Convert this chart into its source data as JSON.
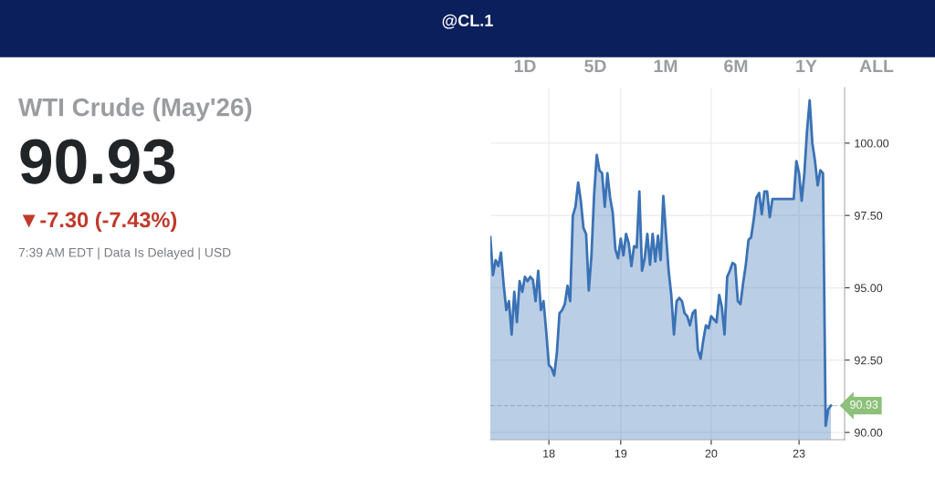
{
  "chart_data": {
    "type": "area",
    "title": "@CL.1",
    "subtitle": "WTI Crude (May'26)",
    "annotations": [
      "90.93",
      "▼-7.30 (-7.43%)",
      "7:39 AM EDT | Data Is Delayed | USD",
      "1D",
      "5D",
      "1M",
      "6M",
      "1Y",
      "ALL"
    ],
    "ylim": [
      89.75,
      101.92
    ],
    "yticks": [
      {
        "value": 90,
        "label": "90.00"
      },
      {
        "value": 92.5,
        "label": "92.50"
      },
      {
        "value": 95,
        "label": "95.00"
      },
      {
        "value": 97.5,
        "label": "97.50"
      },
      {
        "value": 100,
        "label": "100.00"
      }
    ],
    "grid": true,
    "ref_lines": [
      {
        "axis": "y",
        "value": 90.93,
        "label": "90.93",
        "color": "#cccccc",
        "line_style": "dashed"
      }
    ],
    "categories": [
      null,
      null,
      null,
      null,
      null,
      null,
      null,
      null,
      null,
      null,
      null,
      null,
      null,
      null,
      null,
      null,
      null,
      null,
      null,
      null,
      null,
      null,
      "18",
      null,
      null,
      null,
      null,
      null,
      null,
      null,
      null,
      null,
      null,
      null,
      null,
      null,
      null,
      null,
      null,
      null,
      null,
      null,
      null,
      null,
      null,
      null,
      null,
      null,
      null,
      "19",
      null,
      null,
      null,
      null,
      null,
      null,
      null,
      null,
      null,
      null,
      null,
      null,
      null,
      null,
      null,
      null,
      null,
      null,
      null,
      null,
      null,
      null,
      null,
      null,
      null,
      null,
      null,
      null,
      null,
      null,
      null,
      null,
      null,
      "20",
      null,
      null,
      null,
      null,
      null,
      null,
      null,
      null,
      null,
      null,
      null,
      null,
      null,
      null,
      null,
      null,
      null,
      null,
      null,
      null,
      null,
      null,
      null,
      null,
      null,
      null,
      null,
      null,
      null,
      null,
      null,
      null,
      "23",
      null,
      null,
      null,
      null,
      null,
      null,
      null,
      null,
      null,
      null,
      null,
      null
    ],
    "series": [
      {
        "color": "#3a72b5",
        "values": [
          96.75,
          95.44,
          95.96,
          95.75,
          96.22,
          95.12,
          94.23,
          94.54,
          93.39,
          94.86,
          93.81,
          95.23,
          94.86,
          95.38,
          95.23,
          95.38,
          95.28,
          94.54,
          95.59,
          94.23,
          94.54,
          93.49,
          92.33,
          92.23,
          91.97,
          92.75,
          94.12,
          94.23,
          94.44,
          95.07,
          94.54,
          97.49,
          97.8,
          98.64,
          98.01,
          97.07,
          96.86,
          94.91,
          96.12,
          98.22,
          99.59,
          99.06,
          98.96,
          97.8,
          98.96,
          98.12,
          97.59,
          96.33,
          96.02,
          96.7,
          96.12,
          96.86,
          96.54,
          95.75,
          96.44,
          96.39,
          98.33,
          95.59,
          96.02,
          96.86,
          95.8,
          96.86,
          95.91,
          96.8,
          95.96,
          98.17,
          96.86,
          95.59,
          94.75,
          93.39,
          94.54,
          94.65,
          94.54,
          94.12,
          94.02,
          93.7,
          94.12,
          94.23,
          92.86,
          92.55,
          93.18,
          93.7,
          93.6,
          94.02,
          93.91,
          93.81,
          94.75,
          94.33,
          93.39,
          95.38,
          95.59,
          95.86,
          95.8,
          94.54,
          94.44,
          95.17,
          95.8,
          96.65,
          96.75,
          97.38,
          98.12,
          98.28,
          97.54,
          98.33,
          98.33,
          97.44,
          98.07,
          98.07,
          98.07,
          98.07,
          98.07,
          98.07,
          98.07,
          98.07,
          98.07,
          99.38,
          98.96,
          98.01,
          98.96,
          100.43,
          101.48,
          100.0,
          99.38,
          98.54,
          99.06,
          98.96,
          90.23,
          90.81,
          90.93
        ]
      }
    ]
  }
}
